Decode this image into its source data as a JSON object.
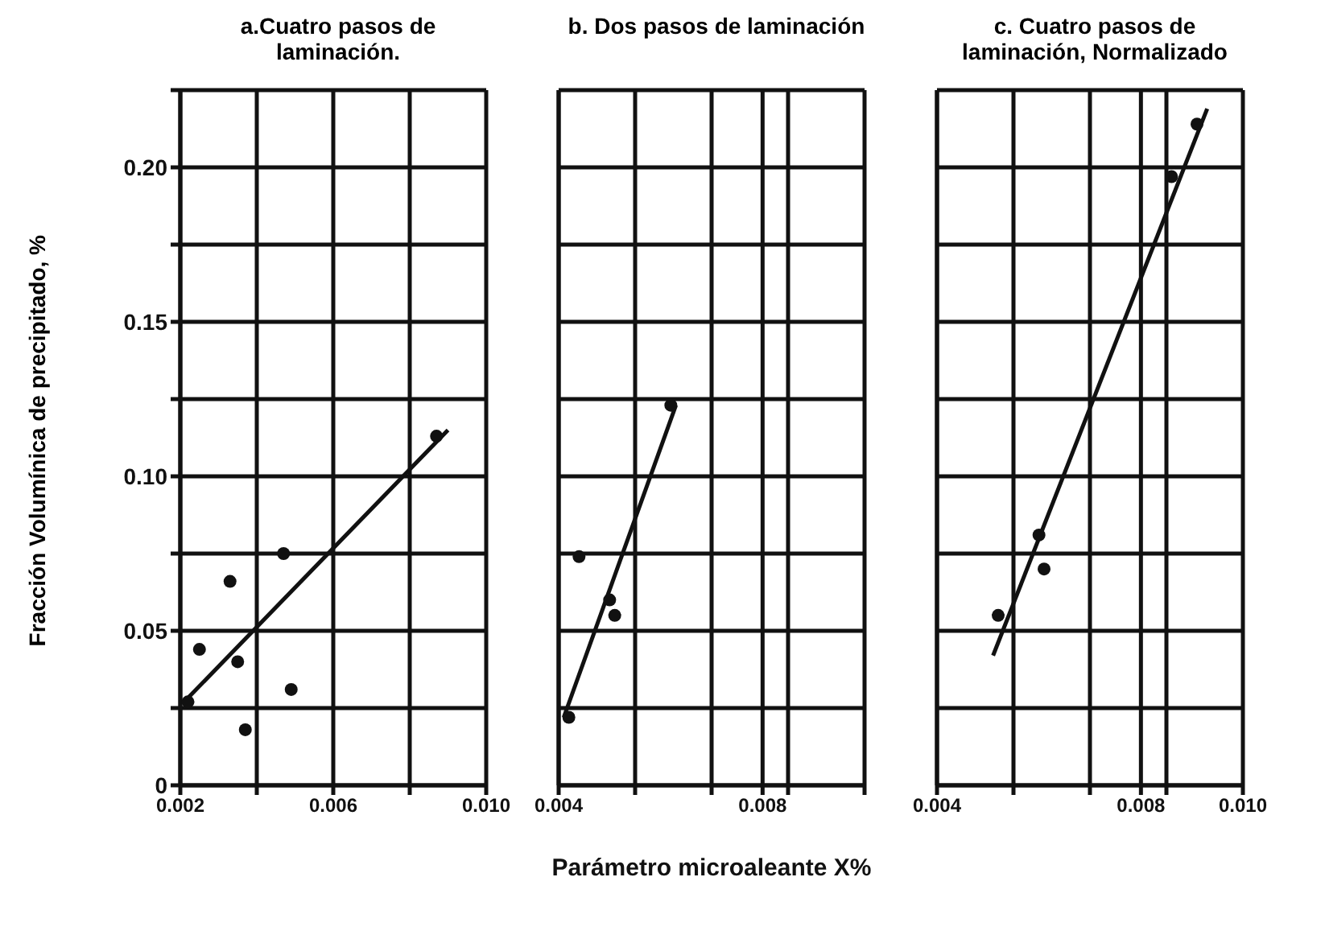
{
  "chart_data": [
    {
      "type": "scatter",
      "title": "a.Cuatro pasos de laminación.",
      "ylabel": "Fracción Volumínica de precipitado, %",
      "xlim": [
        0.002,
        0.01
      ],
      "xticks": [
        0.002,
        {
          "value": 0.004,
          "label": null
        },
        0.006,
        {
          "value": 0.008,
          "label": null
        },
        {
          "value": 0.01,
          "label": "0.010"
        }
      ],
      "ylim": [
        0,
        0.225
      ],
      "yticks": [
        0,
        {
          "value": 0.025,
          "label": null
        },
        0.05,
        {
          "value": 0.075,
          "label": null
        },
        {
          "value": 0.1,
          "label": "0.10"
        },
        {
          "value": 0.125,
          "label": null
        },
        0.15,
        {
          "value": 0.175,
          "label": null
        },
        {
          "value": 0.2,
          "label": "0.20"
        },
        {
          "value": 0.225,
          "label": null
        }
      ],
      "grid": true,
      "marker": "circle",
      "series": [
        {
          "color": "#111111",
          "x": [
            0.0022,
            0.0025,
            0.0033,
            0.0035,
            0.0037,
            0.0047,
            0.0049,
            0.0087
          ],
          "values": [
            0.027,
            0.044,
            0.066,
            0.04,
            0.018,
            0.075,
            0.031,
            0.113
          ]
        },
        {
          "type": "line",
          "marker": "none",
          "color": "#111111",
          "x": [
            0.0021,
            0.009
          ],
          "values": [
            0.027,
            0.115
          ]
        }
      ]
    },
    {
      "type": "scatter",
      "title": "b. Dos pasos de laminación",
      "xlabel": "Parámetro microaleante X%",
      "tick_labels": "x",
      "xlim": [
        0.004,
        0.01
      ],
      "xticks": [
        0.004,
        {
          "value": 0.0055,
          "label": null
        },
        {
          "value": 0.007,
          "label": null
        },
        0.008,
        {
          "value": 0.0085,
          "label": null
        },
        {
          "value": 0.01,
          "label": null
        }
      ],
      "ylim": [
        0,
        0.225
      ],
      "yticks": [
        0,
        0.025,
        0.05,
        0.075,
        0.1,
        0.125,
        0.15,
        0.175,
        0.2,
        0.225
      ],
      "grid": true,
      "marker": "circle",
      "series": [
        {
          "color": "#111111",
          "x": [
            0.0042,
            0.0044,
            0.005,
            0.0051,
            0.0062
          ],
          "values": [
            0.022,
            0.074,
            0.06,
            0.055,
            0.123
          ]
        },
        {
          "type": "line",
          "marker": "none",
          "color": "#111111",
          "x": [
            0.0041,
            0.0063
          ],
          "values": [
            0.022,
            0.123
          ]
        }
      ]
    },
    {
      "type": "scatter",
      "title": "c. Cuatro pasos de laminación, Normalizado",
      "tick_labels": "x",
      "xlim": [
        0.004,
        0.01
      ],
      "xticks": [
        0.004,
        {
          "value": 0.0055,
          "label": null
        },
        {
          "value": 0.007,
          "label": null
        },
        0.008,
        {
          "value": 0.0085,
          "label": null
        },
        {
          "value": 0.01,
          "label": "0.010"
        }
      ],
      "ylim": [
        0,
        0.225
      ],
      "yticks": [
        0,
        0.025,
        0.05,
        0.075,
        0.1,
        0.125,
        0.15,
        0.175,
        0.2,
        0.225
      ],
      "grid": true,
      "marker": "circle",
      "series": [
        {
          "color": "#111111",
          "x": [
            0.0052,
            0.006,
            0.0061,
            0.0086,
            0.0091
          ],
          "values": [
            0.055,
            0.081,
            0.07,
            0.197,
            0.214
          ]
        },
        {
          "type": "line",
          "marker": "none",
          "color": "#111111",
          "x": [
            0.0051,
            0.0093
          ],
          "values": [
            0.042,
            0.219
          ]
        }
      ]
    }
  ]
}
